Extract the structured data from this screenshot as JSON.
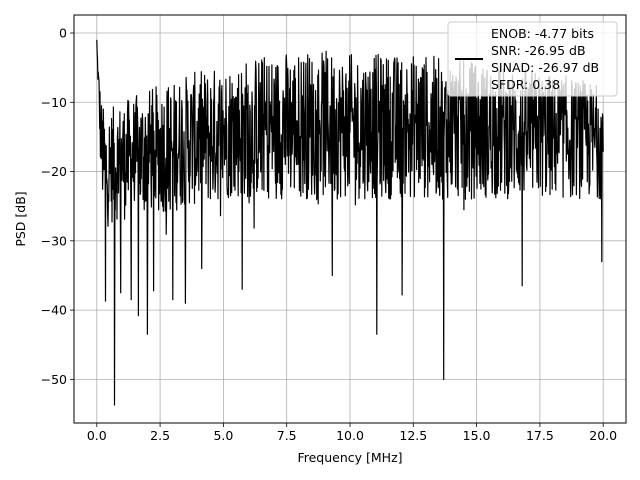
{
  "chart_data": {
    "type": "line",
    "title": "",
    "xlabel": "Frequency [MHz]",
    "ylabel": "PSD [dB]",
    "xlim": [
      -0.9,
      20.9
    ],
    "ylim": [
      -56.3,
      2.6
    ],
    "xticks": [
      0.0,
      2.5,
      5.0,
      7.5,
      10.0,
      12.5,
      15.0,
      17.5,
      20.0
    ],
    "xtick_labels": [
      "0.0",
      "2.5",
      "5.0",
      "7.5",
      "10.0",
      "12.5",
      "15.0",
      "17.5",
      "20.0"
    ],
    "yticks": [
      0,
      -10,
      -20,
      -30,
      -40,
      -50
    ],
    "ytick_labels": [
      "0",
      "−10",
      "−20",
      "−30",
      "−40",
      "−50"
    ],
    "grid": true,
    "legend_placement": "top-right",
    "legend_entries": [
      "ENOB: -4.77 bits",
      "SNR: -26.95 dB",
      "SINAD: -26.97 dB",
      "SFDR: 0.38"
    ],
    "series_color": "#000000",
    "grid_color": "#b0b0b0",
    "series": [
      {
        "x": [
          0.0,
          0.05,
          0.1,
          0.15,
          0.2,
          0.3,
          0.4,
          0.5,
          0.7,
          0.9,
          1.2,
          1.5,
          1.8,
          2.0,
          2.5,
          3.0,
          3.5,
          4.0,
          4.5,
          5.0,
          5.5,
          6.0,
          6.5,
          7.0,
          7.5,
          8.0,
          8.5,
          9.0,
          9.5,
          10.0,
          10.5,
          11.0,
          11.5,
          12.0,
          12.5,
          13.0,
          13.5,
          14.0,
          14.5,
          15.0,
          15.5,
          16.0,
          16.5,
          17.0,
          17.5,
          18.0,
          18.5,
          19.0,
          19.5,
          20.0
        ],
        "upper_envelope": [
          -1.5,
          -4,
          -6,
          -8,
          -10,
          -11,
          -11.5,
          -11,
          -10.5,
          -10,
          -9.5,
          -9,
          -8.5,
          -8,
          -7.5,
          -7,
          -6,
          -5.5,
          -5,
          -4.5,
          -4,
          -3.5,
          -3,
          -3,
          -2.5,
          -2.5,
          -2.5,
          -2.5,
          -3,
          -3,
          -3,
          -3,
          -3,
          -3,
          -3,
          -3,
          -3.5,
          -3.5,
          -4,
          -4,
          -4.5,
          -4.5,
          -5,
          -5,
          -5.5,
          -6,
          -6,
          -6.5,
          -7,
          -7.5
        ],
        "lower_envelope": [
          -3,
          -8,
          -14,
          -20,
          -24,
          -27,
          -28,
          -28,
          -27,
          -27,
          -27,
          -27,
          -27,
          -26,
          -26,
          -26,
          -25,
          -25,
          -25,
          -24,
          -24,
          -24,
          -24,
          -24,
          -24,
          -24,
          -24,
          -24,
          -24,
          -24,
          -24,
          -24,
          -24,
          -24,
          -24,
          -24,
          -24,
          -24,
          -24,
          -24,
          -24,
          -24,
          -24,
          -24,
          -24,
          -24,
          -24,
          -24,
          -24,
          -24
        ],
        "dips": [
          {
            "x": 0.35,
            "y": -38.7
          },
          {
            "x": 0.7,
            "y": -53.7
          },
          {
            "x": 0.95,
            "y": -37.5
          },
          {
            "x": 1.35,
            "y": -38.5
          },
          {
            "x": 1.65,
            "y": -40.8
          },
          {
            "x": 2.0,
            "y": -43.5
          },
          {
            "x": 2.25,
            "y": -37.2
          },
          {
            "x": 3.0,
            "y": -38.5
          },
          {
            "x": 3.5,
            "y": -39.0
          },
          {
            "x": 4.15,
            "y": -34.0
          },
          {
            "x": 5.75,
            "y": -37.0
          },
          {
            "x": 9.3,
            "y": -35.0
          },
          {
            "x": 11.05,
            "y": -43.5
          },
          {
            "x": 12.05,
            "y": -37.8
          },
          {
            "x": 13.7,
            "y": -50.0
          },
          {
            "x": 16.8,
            "y": -36.5
          },
          {
            "x": 19.95,
            "y": -33.0
          }
        ]
      }
    ]
  }
}
